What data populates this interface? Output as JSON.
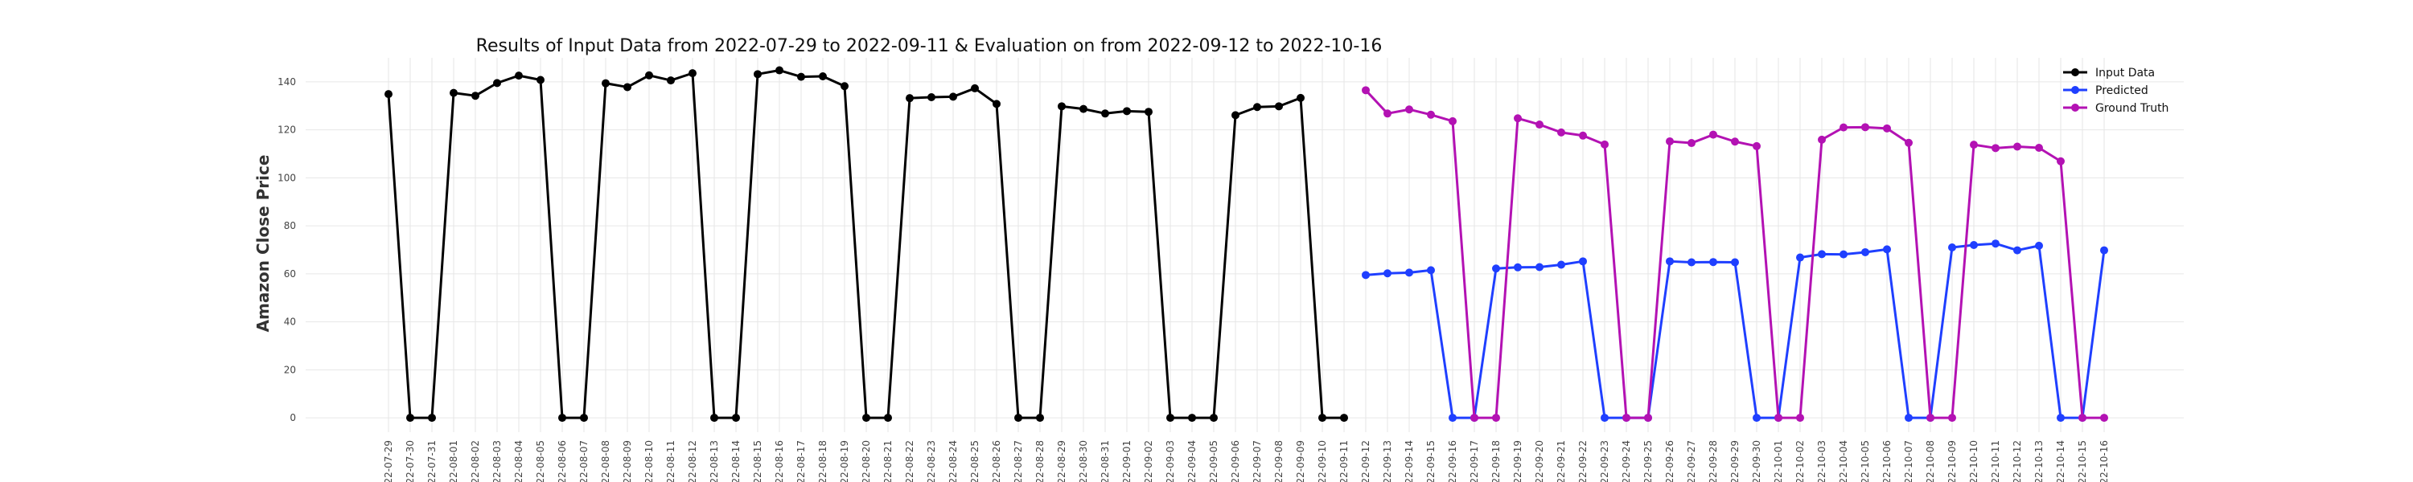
{
  "chart_data": {
    "type": "line",
    "title": "Results of Input Data from 2022-07-29 to 2022-09-11 & Evaluation on from 2022-09-12 to 2022-10-16",
    "xlabel": "",
    "ylabel": "Amazon Close Price",
    "ylim": [
      -6,
      150
    ],
    "yticks": [
      0,
      20,
      40,
      60,
      80,
      100,
      120,
      140
    ],
    "grid": true,
    "legend_position": "top-right",
    "x": [
      "2022-07-29",
      "2022-07-30",
      "2022-07-31",
      "2022-08-01",
      "2022-08-02",
      "2022-08-03",
      "2022-08-04",
      "2022-08-05",
      "2022-08-06",
      "2022-08-07",
      "2022-08-08",
      "2022-08-09",
      "2022-08-10",
      "2022-08-11",
      "2022-08-12",
      "2022-08-13",
      "2022-08-14",
      "2022-08-15",
      "2022-08-16",
      "2022-08-17",
      "2022-08-18",
      "2022-08-19",
      "2022-08-20",
      "2022-08-21",
      "2022-08-22",
      "2022-08-23",
      "2022-08-24",
      "2022-08-25",
      "2022-08-26",
      "2022-08-27",
      "2022-08-28",
      "2022-08-29",
      "2022-08-30",
      "2022-08-31",
      "2022-09-01",
      "2022-09-02",
      "2022-09-03",
      "2022-09-04",
      "2022-09-05",
      "2022-09-06",
      "2022-09-07",
      "2022-09-08",
      "2022-09-09",
      "2022-09-10",
      "2022-09-11",
      "2022-09-12",
      "2022-09-13",
      "2022-09-14",
      "2022-09-15",
      "2022-09-16",
      "2022-09-17",
      "2022-09-18",
      "2022-09-19",
      "2022-09-20",
      "2022-09-21",
      "2022-09-22",
      "2022-09-23",
      "2022-09-24",
      "2022-09-25",
      "2022-09-26",
      "2022-09-27",
      "2022-09-28",
      "2022-09-29",
      "2022-09-30",
      "2022-10-01",
      "2022-10-02",
      "2022-10-03",
      "2022-10-04",
      "2022-10-05",
      "2022-10-06",
      "2022-10-07",
      "2022-10-08",
      "2022-10-09",
      "2022-10-10",
      "2022-10-11",
      "2022-10-12",
      "2022-10-13",
      "2022-10-14",
      "2022-10-15",
      "2022-10-16"
    ],
    "tick_labels": [
      "022-07-29",
      "022-07-30",
      "022-07-31",
      "022-08-01",
      "022-08-02",
      "022-08-03",
      "022-08-04",
      "022-08-05",
      "022-08-06",
      "022-08-07",
      "022-08-08",
      "022-08-09",
      "022-08-10",
      "022-08-11",
      "022-08-12",
      "022-08-13",
      "022-08-14",
      "022-08-15",
      "022-08-16",
      "022-08-17",
      "022-08-18",
      "022-08-19",
      "022-08-20",
      "022-08-21",
      "022-08-22",
      "022-08-23",
      "022-08-24",
      "022-08-25",
      "022-08-26",
      "022-08-27",
      "022-08-28",
      "022-08-29",
      "022-08-30",
      "022-08-31",
      "022-09-01",
      "022-09-02",
      "022-09-03",
      "022-09-04",
      "022-09-05",
      "022-09-06",
      "022-09-07",
      "022-09-08",
      "022-09-09",
      "022-09-10",
      "022-09-11",
      "022-09-12",
      "022-09-13",
      "022-09-14",
      "022-09-15",
      "022-09-16",
      "022-09-17",
      "022-09-18",
      "022-09-19",
      "022-09-20",
      "022-09-21",
      "022-09-22",
      "022-09-23",
      "022-09-24",
      "022-09-25",
      "022-09-26",
      "022-09-27",
      "022-09-28",
      "022-09-29",
      "022-09-30",
      "022-10-01",
      "022-10-02",
      "022-10-03",
      "022-10-04",
      "022-10-05",
      "022-10-06",
      "022-10-07",
      "022-10-08",
      "022-10-09",
      "022-10-10",
      "022-10-11",
      "022-10-12",
      "022-10-13",
      "022-10-14",
      "022-10-15",
      "022-10-16"
    ],
    "series": [
      {
        "name": "Input Data",
        "color": "#000000",
        "x": [
          "2022-07-29",
          "2022-07-30",
          "2022-07-31",
          "2022-08-01",
          "2022-08-02",
          "2022-08-03",
          "2022-08-04",
          "2022-08-05",
          "2022-08-06",
          "2022-08-07",
          "2022-08-08",
          "2022-08-09",
          "2022-08-10",
          "2022-08-11",
          "2022-08-12",
          "2022-08-13",
          "2022-08-14",
          "2022-08-15",
          "2022-08-16",
          "2022-08-17",
          "2022-08-18",
          "2022-08-19",
          "2022-08-20",
          "2022-08-21",
          "2022-08-22",
          "2022-08-23",
          "2022-08-24",
          "2022-08-25",
          "2022-08-26",
          "2022-08-27",
          "2022-08-28",
          "2022-08-29",
          "2022-08-30",
          "2022-08-31",
          "2022-09-01",
          "2022-09-02",
          "2022-09-03",
          "2022-09-04",
          "2022-09-05",
          "2022-09-06",
          "2022-09-07",
          "2022-09-08",
          "2022-09-09",
          "2022-09-10",
          "2022-09-11"
        ],
        "values": [
          134.9,
          0,
          0,
          135.4,
          134.2,
          139.5,
          142.6,
          140.8,
          0,
          0,
          139.4,
          137.8,
          142.7,
          140.6,
          143.6,
          0,
          0,
          143.2,
          144.8,
          142.1,
          142.3,
          138.2,
          0,
          0,
          133.2,
          133.6,
          133.8,
          137.3,
          130.8,
          0,
          0,
          129.8,
          128.7,
          126.8,
          127.8,
          127.5,
          0,
          0,
          0,
          126.1,
          129.5,
          129.8,
          133.3,
          0,
          0
        ]
      },
      {
        "name": "Predicted",
        "color": "#1f3fff",
        "x": [
          "2022-09-12",
          "2022-09-13",
          "2022-09-14",
          "2022-09-15",
          "2022-09-16",
          "2022-09-17",
          "2022-09-18",
          "2022-09-19",
          "2022-09-20",
          "2022-09-21",
          "2022-09-22",
          "2022-09-23",
          "2022-09-24",
          "2022-09-25",
          "2022-09-26",
          "2022-09-27",
          "2022-09-28",
          "2022-09-29",
          "2022-09-30",
          "2022-10-01",
          "2022-10-02",
          "2022-10-03",
          "2022-10-04",
          "2022-10-05",
          "2022-10-06",
          "2022-10-07",
          "2022-10-08",
          "2022-10-09",
          "2022-10-10",
          "2022-10-11",
          "2022-10-12",
          "2022-10-13",
          "2022-10-14",
          "2022-10-15",
          "2022-10-16"
        ],
        "values": [
          59.5,
          60.2,
          60.5,
          61.5,
          0,
          0,
          62.2,
          62.7,
          62.8,
          63.8,
          65.2,
          0,
          0,
          0,
          65.2,
          64.8,
          64.9,
          64.8,
          0,
          0,
          66.8,
          68.2,
          68.1,
          69.0,
          70.2,
          0,
          0,
          71.0,
          72.0,
          72.6,
          69.8,
          71.7,
          0,
          0,
          69.8
        ]
      },
      {
        "name": "Ground Truth",
        "color": "#b312b3",
        "x": [
          "2022-09-12",
          "2022-09-13",
          "2022-09-14",
          "2022-09-15",
          "2022-09-16",
          "2022-09-17",
          "2022-09-18",
          "2022-09-19",
          "2022-09-20",
          "2022-09-21",
          "2022-09-22",
          "2022-09-23",
          "2022-09-24",
          "2022-09-25",
          "2022-09-26",
          "2022-09-27",
          "2022-09-28",
          "2022-09-29",
          "2022-09-30",
          "2022-10-01",
          "2022-10-02",
          "2022-10-03",
          "2022-10-04",
          "2022-10-05",
          "2022-10-06",
          "2022-10-07",
          "2022-10-08",
          "2022-10-09",
          "2022-10-10",
          "2022-10-11",
          "2022-10-12",
          "2022-10-13",
          "2022-10-14",
          "2022-10-15",
          "2022-10-16"
        ],
        "values": [
          136.5,
          126.8,
          128.5,
          126.3,
          123.6,
          0,
          0,
          124.8,
          122.2,
          118.9,
          117.6,
          113.9,
          0,
          0,
          115.2,
          114.5,
          118.0,
          115.1,
          113.2,
          0,
          0,
          115.9,
          121.0,
          121.1,
          120.6,
          114.6,
          0,
          0,
          113.8,
          112.4,
          113.0,
          112.5,
          106.9,
          0,
          0
        ]
      }
    ]
  }
}
